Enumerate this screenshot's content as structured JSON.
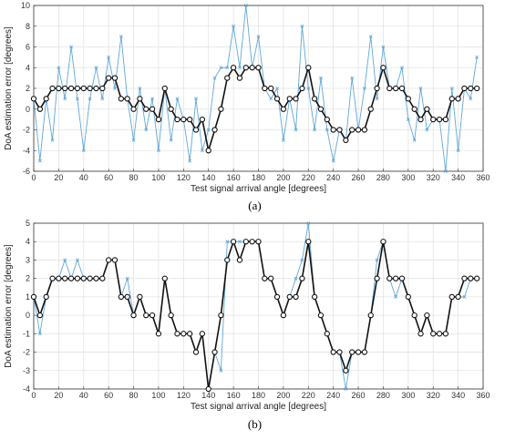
{
  "chart_data": [
    {
      "type": "line",
      "caption": "(a)",
      "xlabel": "Test signal arrival angle [degrees]",
      "ylabel": "DoA estimation error [degrees]",
      "xlim": [
        0,
        360
      ],
      "ylim": [
        -6,
        10
      ],
      "xticks": [
        0,
        20,
        40,
        60,
        80,
        100,
        120,
        140,
        160,
        180,
        200,
        220,
        240,
        260,
        280,
        300,
        320,
        340,
        360
      ],
      "yticks": [
        -6,
        -4,
        -2,
        0,
        2,
        4,
        6,
        8,
        10
      ],
      "grid": true,
      "x": [
        0,
        5,
        10,
        15,
        20,
        25,
        30,
        35,
        40,
        45,
        50,
        55,
        60,
        65,
        70,
        75,
        80,
        85,
        90,
        95,
        100,
        105,
        110,
        115,
        120,
        125,
        130,
        135,
        140,
        145,
        150,
        155,
        160,
        165,
        170,
        175,
        180,
        185,
        190,
        195,
        200,
        205,
        210,
        215,
        220,
        225,
        230,
        235,
        240,
        245,
        250,
        255,
        260,
        265,
        270,
        275,
        280,
        285,
        290,
        295,
        300,
        305,
        310,
        315,
        320,
        325,
        330,
        335,
        340,
        345,
        350,
        355
      ],
      "series": [
        {
          "style": "thin-light-blue-with-x-markers",
          "color": "#5fa8d8",
          "values": [
            1,
            -5,
            1,
            -3,
            4,
            1,
            6,
            1,
            -4,
            1,
            4,
            1,
            5,
            2,
            7,
            1,
            -3,
            2,
            -2,
            1,
            -4,
            2,
            -3,
            1,
            -1,
            -5,
            1,
            -4,
            -2,
            3,
            4,
            4,
            8,
            4,
            10,
            4,
            7,
            2,
            1,
            2,
            -3,
            1,
            -2,
            8,
            2,
            -2,
            3,
            -2,
            -5,
            -2,
            -3,
            3,
            -2,
            2,
            7,
            1,
            6,
            2,
            2,
            4,
            -1,
            -3,
            2,
            -2,
            -1,
            -1,
            -6,
            2,
            -4,
            2,
            1,
            5
          ]
        },
        {
          "style": "black-with-circle-markers",
          "color": "#111111",
          "values": [
            1,
            0,
            1,
            2,
            2,
            2,
            2,
            2,
            2,
            2,
            2,
            2,
            3,
            3,
            1,
            1,
            0,
            1,
            0,
            0,
            -1,
            2,
            0,
            -1,
            -1,
            -1,
            -2,
            -1,
            -4,
            -2,
            0,
            3,
            4,
            3,
            4,
            4,
            4,
            2,
            2,
            1,
            0,
            1,
            1,
            2,
            4,
            1,
            0,
            -1,
            -2,
            -2,
            -3,
            -2,
            -2,
            -2,
            0,
            2,
            4,
            2,
            2,
            2,
            1,
            0,
            -1,
            0,
            -1,
            -1,
            -1,
            1,
            1,
            2,
            2,
            2
          ]
        }
      ]
    },
    {
      "type": "line",
      "caption": "(b)",
      "xlabel": "Test signal arrival angle [degrees]",
      "ylabel": "DoA estimation error [degrees]",
      "xlim": [
        0,
        360
      ],
      "ylim": [
        -4,
        5
      ],
      "xticks": [
        0,
        20,
        40,
        60,
        80,
        100,
        120,
        140,
        160,
        180,
        200,
        220,
        240,
        260,
        280,
        300,
        320,
        340,
        360
      ],
      "yticks": [
        -4,
        -3,
        -2,
        -1,
        0,
        1,
        2,
        3,
        4,
        5
      ],
      "grid": true,
      "x": [
        0,
        5,
        10,
        15,
        20,
        25,
        30,
        35,
        40,
        45,
        50,
        55,
        60,
        65,
        70,
        75,
        80,
        85,
        90,
        95,
        100,
        105,
        110,
        115,
        120,
        125,
        130,
        135,
        140,
        145,
        150,
        155,
        160,
        165,
        170,
        175,
        180,
        185,
        190,
        195,
        200,
        205,
        210,
        215,
        220,
        225,
        230,
        235,
        240,
        245,
        250,
        255,
        260,
        265,
        270,
        275,
        280,
        285,
        290,
        295,
        300,
        305,
        310,
        315,
        320,
        325,
        330,
        335,
        340,
        345,
        350,
        355
      ],
      "series": [
        {
          "style": "thin-light-blue-with-x-markers",
          "color": "#5fa8d8",
          "values": [
            1,
            -1,
            1,
            2,
            2,
            3,
            2,
            3,
            2,
            2,
            2,
            2,
            3,
            3,
            1,
            2,
            0,
            1,
            0,
            0,
            -1,
            2,
            0,
            -1,
            -1,
            -1,
            -2,
            -1,
            -4,
            -2,
            -3,
            4,
            4,
            4,
            4,
            4,
            4,
            2,
            2,
            1,
            0,
            1,
            2,
            3,
            5,
            1,
            0,
            -1,
            -2,
            -2,
            -4,
            -2,
            -2,
            -2,
            0,
            3,
            4,
            2,
            1,
            2,
            1,
            0,
            -1,
            0,
            -1,
            -1,
            -1,
            1,
            1,
            1,
            2,
            2
          ]
        },
        {
          "style": "black-with-circle-markers",
          "color": "#111111",
          "values": [
            1,
            0,
            1,
            2,
            2,
            2,
            2,
            2,
            2,
            2,
            2,
            2,
            3,
            3,
            1,
            1,
            0,
            1,
            0,
            0,
            -1,
            2,
            0,
            -1,
            -1,
            -1,
            -2,
            -1,
            -4,
            -2,
            0,
            3,
            4,
            3,
            4,
            4,
            4,
            2,
            2,
            1,
            0,
            1,
            1,
            2,
            4,
            1,
            0,
            -1,
            -2,
            -2,
            -3,
            -2,
            -2,
            -2,
            0,
            2,
            4,
            2,
            2,
            2,
            1,
            0,
            -1,
            0,
            -1,
            -1,
            -1,
            1,
            1,
            2,
            2,
            2
          ]
        }
      ]
    }
  ]
}
